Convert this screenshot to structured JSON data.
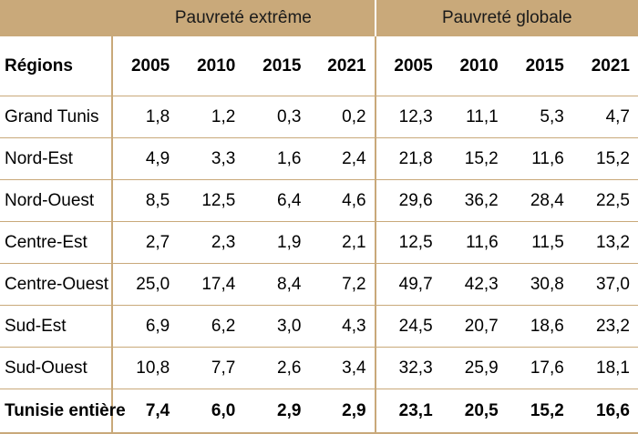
{
  "groups": {
    "extreme": "Pauvreté extrême",
    "global": "Pauvreté globale"
  },
  "header": {
    "region": "Régions",
    "years": [
      "2005",
      "2010",
      "2015",
      "2021"
    ]
  },
  "rows": [
    {
      "region": "Grand Tunis",
      "extreme": [
        "1,8",
        "1,2",
        "0,3",
        "0,2"
      ],
      "global": [
        "12,3",
        "11,1",
        "5,3",
        "4,7"
      ]
    },
    {
      "region": "Nord-Est",
      "extreme": [
        "4,9",
        "3,3",
        "1,6",
        "2,4"
      ],
      "global": [
        "21,8",
        "15,2",
        "11,6",
        "15,2"
      ]
    },
    {
      "region": "Nord-Ouest",
      "extreme": [
        "8,5",
        "12,5",
        "6,4",
        "4,6"
      ],
      "global": [
        "29,6",
        "36,2",
        "28,4",
        "22,5"
      ]
    },
    {
      "region": "Centre-Est",
      "extreme": [
        "2,7",
        "2,3",
        "1,9",
        "2,1"
      ],
      "global": [
        "12,5",
        "11,6",
        "11,5",
        "13,2"
      ]
    },
    {
      "region": "Centre-Ouest",
      "extreme": [
        "25,0",
        "17,4",
        "8,4",
        "7,2"
      ],
      "global": [
        "49,7",
        "42,3",
        "30,8",
        "37,0"
      ]
    },
    {
      "region": "Sud-Est",
      "extreme": [
        "6,9",
        "6,2",
        "3,0",
        "4,3"
      ],
      "global": [
        "24,5",
        "20,7",
        "18,6",
        "23,2"
      ]
    },
    {
      "region": "Sud-Ouest",
      "extreme": [
        "10,8",
        "7,7",
        "2,6",
        "3,4"
      ],
      "global": [
        "32,3",
        "25,9",
        "17,6",
        "18,1"
      ]
    }
  ],
  "total": {
    "region": "Tunisie entière",
    "extreme": [
      "7,4",
      "6,0",
      "2,9",
      "2,9"
    ],
    "global": [
      "23,1",
      "20,5",
      "15,2",
      "16,6"
    ]
  },
  "colors": {
    "header_band": "#c9a97a",
    "rule": "#c9a97a"
  }
}
